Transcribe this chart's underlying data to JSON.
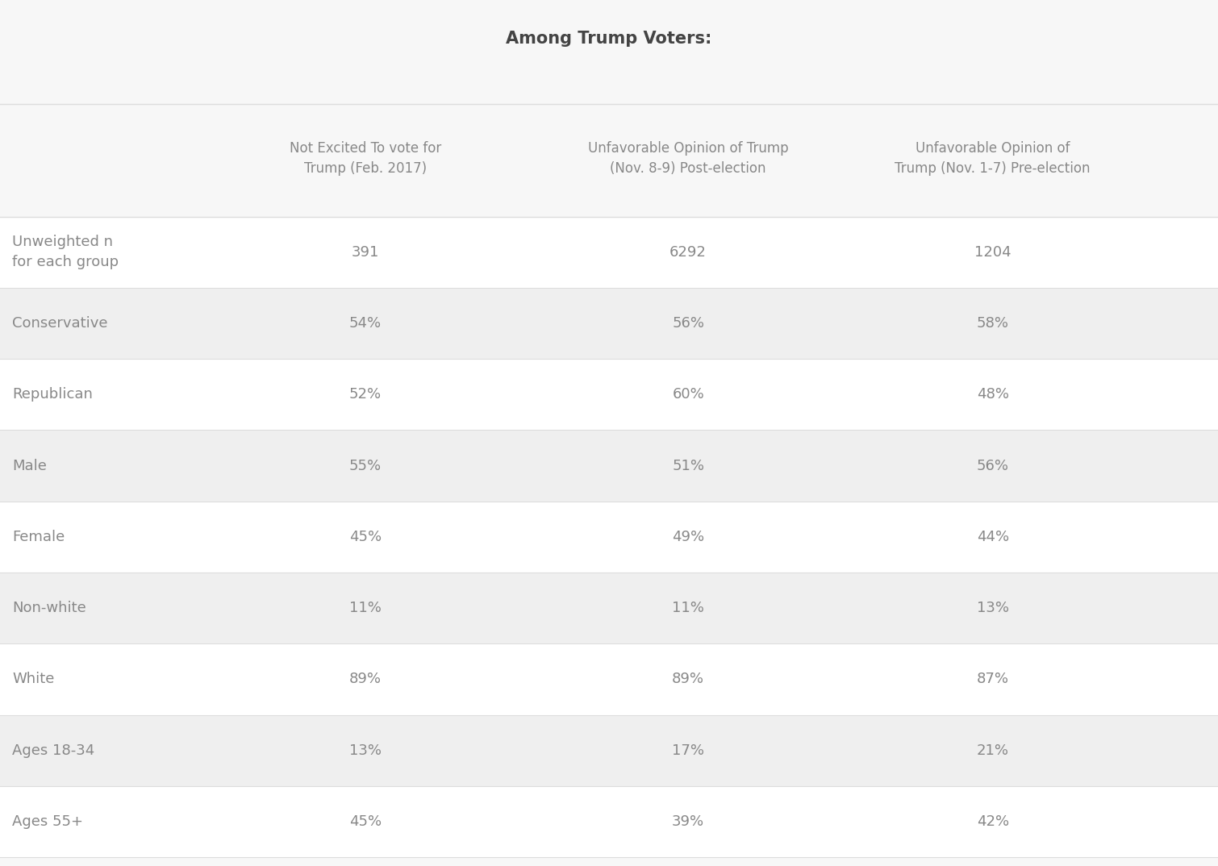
{
  "title": "Among Trump Voters:",
  "col_headers": [
    "Not Excited To vote for\nTrump (Feb. 2017)",
    "Unfavorable Opinion of Trump\n(Nov. 8-9) Post-election",
    "Unfavorable Opinion of\nTrump (Nov. 1-7) Pre-election"
  ],
  "row_labels": [
    "Unweighted n\nfor each group",
    "Conservative",
    "Republican",
    "Male",
    "Female",
    "Non-white",
    "White",
    "Ages 18-34",
    "Ages 55+"
  ],
  "data": [
    [
      "391",
      "6292",
      "1204"
    ],
    [
      "54%",
      "56%",
      "58%"
    ],
    [
      "52%",
      "60%",
      "48%"
    ],
    [
      "55%",
      "51%",
      "56%"
    ],
    [
      "45%",
      "49%",
      "44%"
    ],
    [
      "11%",
      "11%",
      "13%"
    ],
    [
      "89%",
      "89%",
      "87%"
    ],
    [
      "13%",
      "17%",
      "21%"
    ],
    [
      "45%",
      "39%",
      "42%"
    ]
  ],
  "bg_color": "#f7f7f7",
  "white_row_color": "#ffffff",
  "gray_row_color": "#efefef",
  "text_color": "#888888",
  "title_color": "#444444",
  "header_color": "#888888",
  "divider_color": "#dddddd",
  "title_fontsize": 15,
  "header_fontsize": 12,
  "cell_fontsize": 13,
  "row_label_fontsize": 13
}
